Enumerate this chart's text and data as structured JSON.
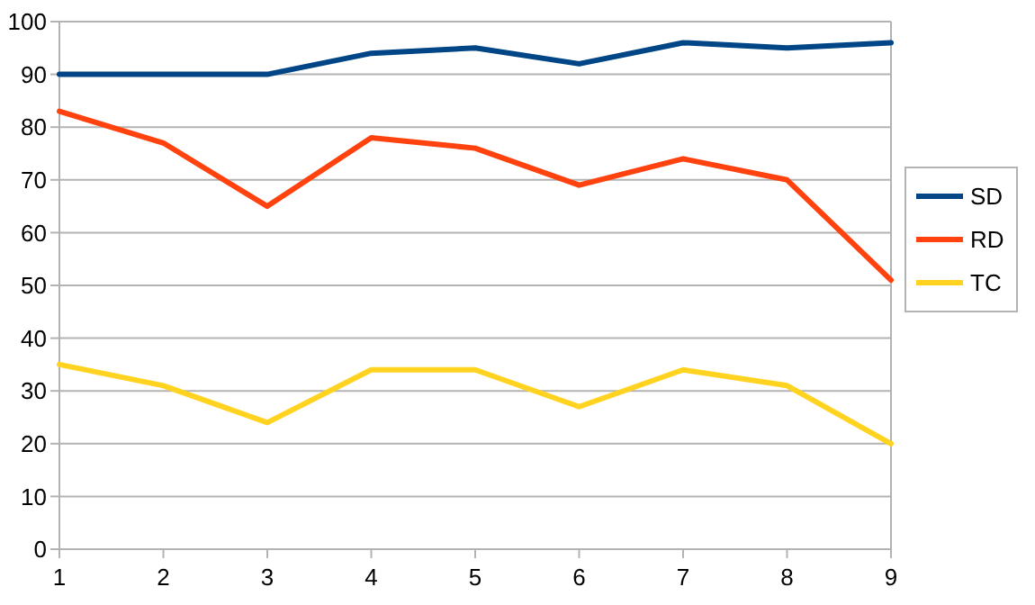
{
  "chart_data": {
    "type": "line",
    "x": [
      1,
      2,
      3,
      4,
      5,
      6,
      7,
      8,
      9
    ],
    "xlim": [
      1,
      9
    ],
    "xticks": [
      1,
      2,
      3,
      4,
      5,
      6,
      7,
      8,
      9
    ],
    "ylim": [
      0,
      100
    ],
    "yticks": [
      0,
      10,
      20,
      30,
      40,
      50,
      60,
      70,
      80,
      90,
      100
    ],
    "grid": "y",
    "legend": "right",
    "marker": "none",
    "line_style": "solid",
    "series": [
      {
        "name": "SD",
        "color": "#004586",
        "values": [
          90,
          90,
          90,
          94,
          95,
          92,
          96,
          95,
          96
        ]
      },
      {
        "name": "RD",
        "color": "#ff420e",
        "values": [
          83,
          77,
          65,
          78,
          76,
          69,
          74,
          70,
          51
        ]
      },
      {
        "name": "TC",
        "color": "#ffd320",
        "values": [
          35,
          31,
          24,
          34,
          34,
          27,
          34,
          31,
          20
        ]
      }
    ]
  }
}
